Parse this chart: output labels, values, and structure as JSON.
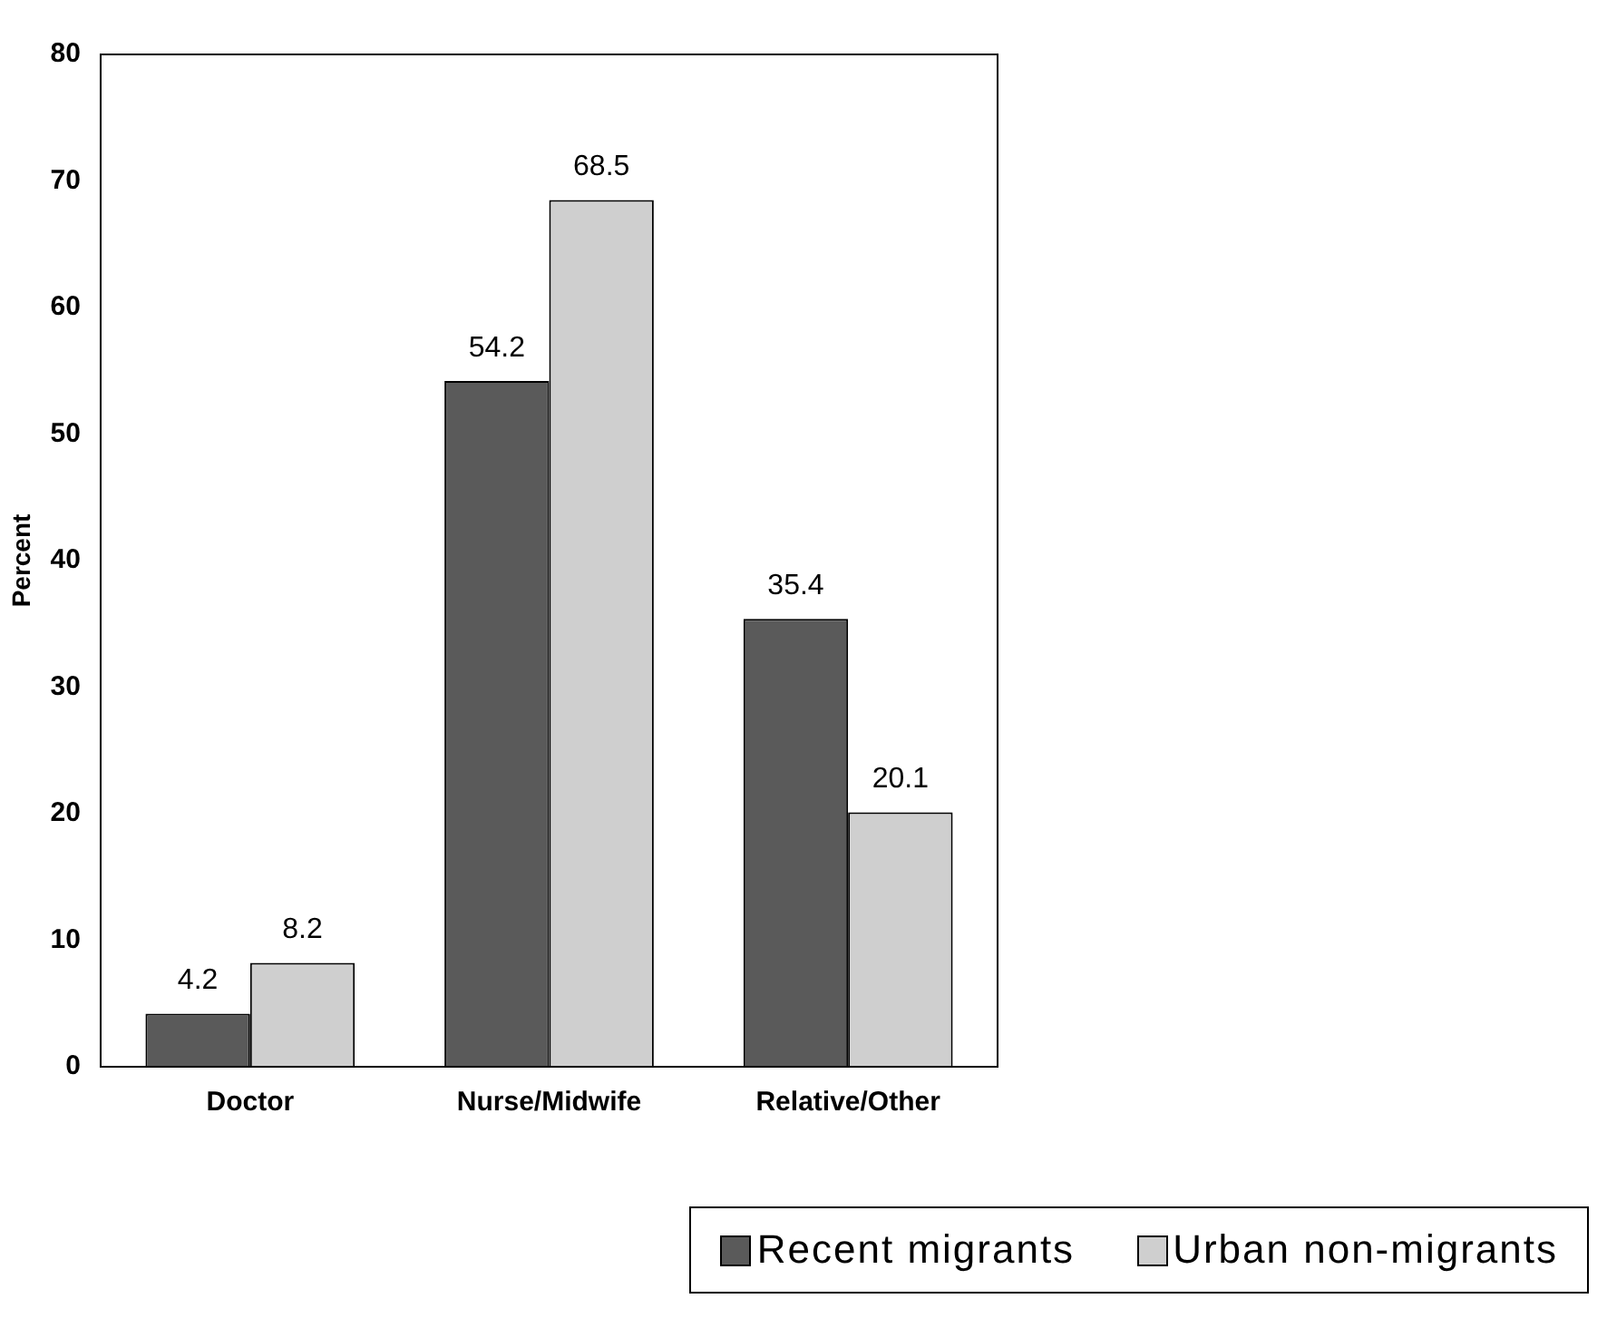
{
  "chart_data": {
    "type": "bar",
    "ylabel": "Percent",
    "categories": [
      "Doctor",
      "Nurse/Midwife",
      "Relative/Other"
    ],
    "series": [
      {
        "name": "Recent migrants",
        "color": "#5a5a5a",
        "values": [
          4.2,
          54.2,
          35.4
        ]
      },
      {
        "name": "Urban non-migrants",
        "color": "#cfcfcf",
        "values": [
          8.2,
          68.5,
          20.1
        ]
      }
    ],
    "ylim": [
      0,
      80
    ],
    "yticks": [
      0,
      10,
      20,
      30,
      40,
      50,
      60,
      70,
      80
    ],
    "grid": false,
    "legend": "bottom right",
    "data_labels": true
  }
}
